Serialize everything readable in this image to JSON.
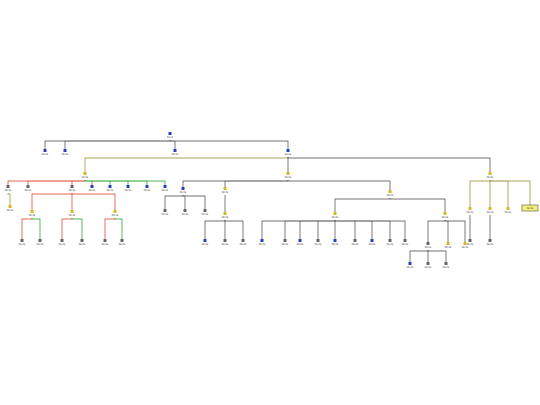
{
  "nodes": [
    {
      "label": "Root",
      "parent": null,
      "kind": "blue"
    },
    {
      "label": "Node",
      "parent": 0,
      "kind": "blue"
    },
    {
      "label": "Node",
      "parent": 0,
      "kind": "blue"
    },
    {
      "label": "Node",
      "parent": 0,
      "kind": "blue"
    },
    {
      "label": "Node",
      "parent": 0,
      "kind": "blue"
    },
    {
      "label": "Node",
      "parent": 4,
      "kind": "yellow",
      "edge": "#8a8a20"
    },
    {
      "label": "Node",
      "parent": 4,
      "kind": "yellow"
    },
    {
      "label": "Node",
      "parent": 4,
      "kind": "yellow"
    },
    {
      "label": "Node",
      "parent": 5,
      "kind": "gray",
      "edge": "#d9381e"
    },
    {
      "label": "Node",
      "parent": 5,
      "kind": "gray",
      "edge": "#d9381e"
    },
    {
      "label": "Node",
      "parent": 5,
      "kind": "gray",
      "edge": "#d9381e"
    },
    {
      "label": "Node",
      "parent": 5,
      "kind": "blue",
      "edge": "#d9381e"
    },
    {
      "label": "Node",
      "parent": 5,
      "kind": "blue",
      "edge": "#1a9a1a"
    },
    {
      "label": "Node",
      "parent": 5,
      "kind": "blue",
      "edge": "#1a9a1a"
    },
    {
      "label": "Node",
      "parent": 5,
      "kind": "blue",
      "edge": "#1a9a1a"
    },
    {
      "label": "Node",
      "parent": 5,
      "kind": "blue",
      "edge": "#1a9a1a"
    },
    {
      "label": "Node",
      "parent": 6,
      "kind": "blue"
    },
    {
      "label": "Node",
      "parent": 6,
      "kind": "yellow"
    },
    {
      "label": "Node",
      "parent": 6,
      "kind": "yellow"
    },
    {
      "label": "Node",
      "parent": 7,
      "kind": "yellow",
      "edge": "#8a8a20"
    },
    {
      "label": "Node",
      "parent": 7,
      "kind": "yellow",
      "edge": "#8a8a20"
    },
    {
      "label": "Node",
      "parent": 7,
      "kind": "yellow",
      "edge": "#8a8a20"
    },
    {
      "label": "Node",
      "parent": 7,
      "kind": "highlight",
      "edge": "#8a8a20"
    },
    {
      "label": "Node",
      "parent": 8,
      "kind": "yellow",
      "edge": "#8a8a20"
    },
    {
      "label": "Node",
      "parent": 10,
      "kind": "yellow",
      "edge": "#d9381e"
    },
    {
      "label": "Node",
      "parent": 10,
      "kind": "yellow",
      "edge": "#d9381e"
    },
    {
      "label": "Node",
      "parent": 10,
      "kind": "yellow",
      "edge": "#d9381e"
    },
    {
      "label": "Node",
      "parent": 24,
      "kind": "gray",
      "edge": "#d9381e"
    },
    {
      "label": "Node",
      "parent": 24,
      "kind": "gray",
      "edge": "#1a9a1a"
    },
    {
      "label": "Node",
      "parent": 25,
      "kind": "gray",
      "edge": "#d9381e"
    },
    {
      "label": "Node",
      "parent": 25,
      "kind": "gray",
      "edge": "#1a9a1a"
    },
    {
      "label": "Node",
      "parent": 26,
      "kind": "gray",
      "edge": "#d9381e"
    },
    {
      "label": "Node",
      "parent": 26,
      "kind": "gray",
      "edge": "#1a9a1a"
    },
    {
      "label": "Node",
      "parent": 16,
      "kind": "gray"
    },
    {
      "label": "Node",
      "parent": 16,
      "kind": "gray"
    },
    {
      "label": "Node",
      "parent": 16,
      "kind": "gray"
    },
    {
      "label": "Node",
      "parent": 17,
      "kind": "yellow"
    },
    {
      "label": "Node",
      "parent": 36,
      "kind": "blue"
    },
    {
      "label": "Node",
      "parent": 36,
      "kind": "gray"
    },
    {
      "label": "Node",
      "parent": 36,
      "kind": "gray"
    },
    {
      "label": "Node",
      "parent": 18,
      "kind": "yellow"
    },
    {
      "label": "Node",
      "parent": 18,
      "kind": "yellow"
    },
    {
      "label": "Node",
      "parent": 40,
      "kind": "blue"
    },
    {
      "label": "Node",
      "parent": 40,
      "kind": "gray"
    },
    {
      "label": "Node",
      "parent": 40,
      "kind": "blue"
    },
    {
      "label": "Node",
      "parent": 40,
      "kind": "gray"
    },
    {
      "label": "Node",
      "parent": 40,
      "kind": "blue"
    },
    {
      "label": "Node",
      "parent": 40,
      "kind": "gray"
    },
    {
      "label": "Node",
      "parent": 40,
      "kind": "blue"
    },
    {
      "label": "Node",
      "parent": 40,
      "kind": "gray"
    },
    {
      "label": "Node",
      "parent": 40,
      "kind": "gray"
    },
    {
      "label": "Node",
      "parent": 41,
      "kind": "gray"
    },
    {
      "label": "Node",
      "parent": 41,
      "kind": "yellow"
    },
    {
      "label": "Node",
      "parent": 41,
      "kind": "yellow"
    },
    {
      "label": "Node",
      "parent": 51,
      "kind": "blue"
    },
    {
      "label": "Node",
      "parent": 51,
      "kind": "gray"
    },
    {
      "label": "Node",
      "parent": 51,
      "kind": "gray"
    },
    {
      "label": "Node",
      "parent": 19,
      "kind": "gray"
    },
    {
      "label": "Node",
      "parent": 20,
      "kind": "gray"
    }
  ]
}
